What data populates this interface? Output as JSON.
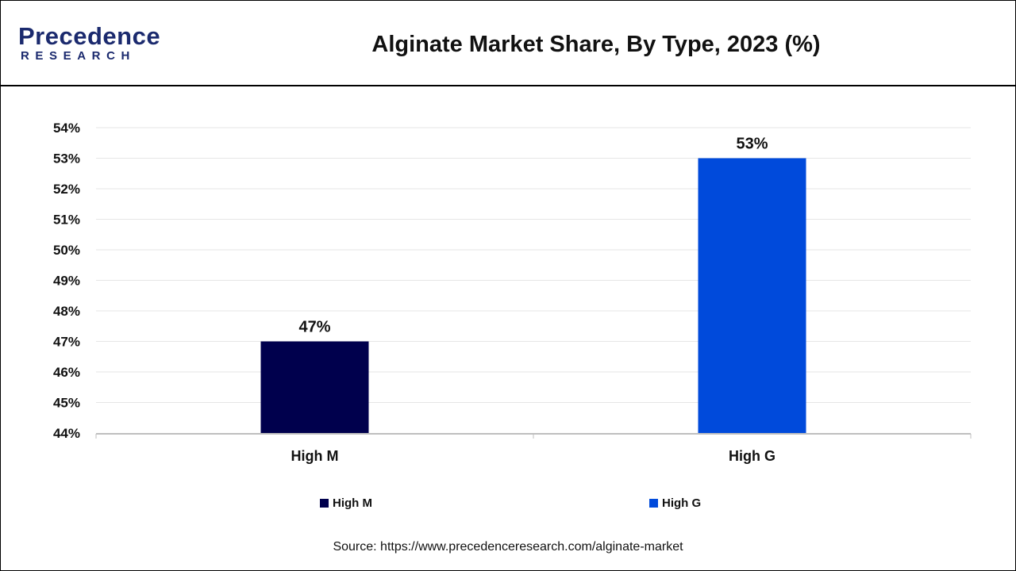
{
  "header": {
    "logo_top": "Precedence",
    "logo_bottom": "RESEARCH",
    "title": "Alginate Market Share, By Type, 2023 (%)"
  },
  "colors": {
    "brand": "#1b2a6e",
    "high_m": "#00004d",
    "high_g": "#004adb"
  },
  "chart_data": {
    "type": "bar",
    "title": "Alginate Market Share, By Type, 2023 (%)",
    "categories": [
      "High M",
      "High G"
    ],
    "values": [
      47,
      53
    ],
    "data_labels": [
      "47%",
      "53%"
    ],
    "bar_colors": [
      "#00004d",
      "#004adb"
    ],
    "ylim": [
      44,
      54
    ],
    "yticks": [
      44,
      45,
      46,
      47,
      48,
      49,
      50,
      51,
      52,
      53,
      54
    ],
    "yunit": "%",
    "xlabel": "",
    "ylabel": "",
    "grid": true,
    "legend_position": "bottom",
    "legend": [
      {
        "label": "High M",
        "color": "#00004d"
      },
      {
        "label": "High G",
        "color": "#004adb"
      }
    ]
  },
  "footer": {
    "source": "Source: https://www.precedenceresearch.com/alginate-market"
  }
}
